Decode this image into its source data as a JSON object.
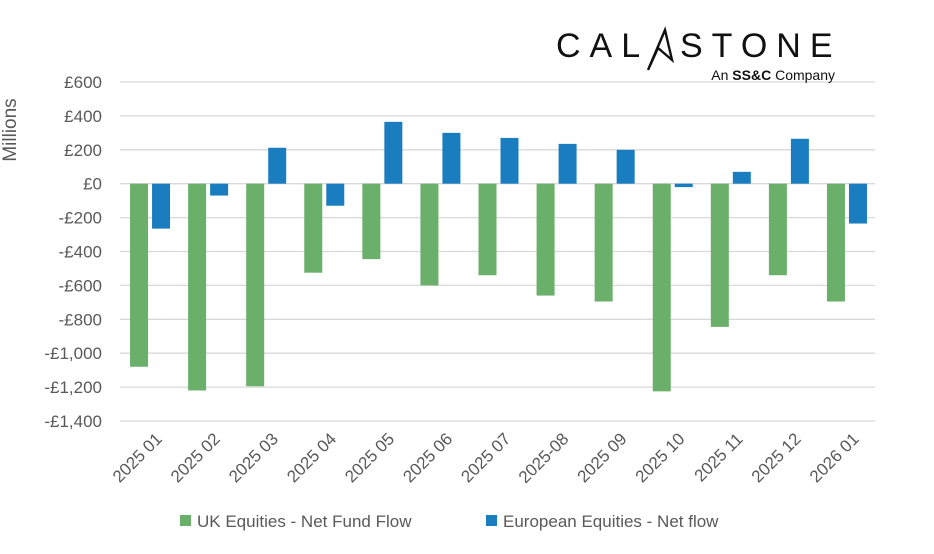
{
  "logo": {
    "name": "CALASTONE",
    "tagline_prefix": "An",
    "tagline_brand": "SS&C",
    "tagline_suffix": "Company"
  },
  "chart_data": {
    "type": "bar",
    "title": "",
    "xlabel": "",
    "ylabel": "Millions",
    "ylim": [
      -1400,
      600
    ],
    "yticks": [
      600,
      400,
      200,
      0,
      -200,
      -400,
      -600,
      -800,
      -1000,
      -1200,
      -1400
    ],
    "ytick_labels": [
      "£600",
      "£400",
      "£200",
      "£0",
      "-£200",
      "-£400",
      "-£600",
      "-£800",
      "-£1,000",
      "-£1,200",
      "-£1,400"
    ],
    "grid": true,
    "legend_position": "bottom",
    "categories": [
      "2025 01",
      "2025 02",
      "2025 03",
      "2025 04",
      "2025 05",
      "2025 06",
      "2025 07",
      "2025-08",
      "2025 09",
      "2025 10",
      "2025 11",
      "2025 12",
      "2026 01"
    ],
    "series": [
      {
        "name": "UK Equities - Net Fund Flow",
        "color": "#6aaf6a",
        "values": [
          -1080,
          -1220,
          -1195,
          -525,
          -445,
          -600,
          -540,
          -660,
          -695,
          -1225,
          -845,
          -540,
          -695
        ]
      },
      {
        "name": "European Equities - Net flow",
        "color": "#1a7dbf",
        "values": [
          -265,
          -70,
          212,
          -130,
          365,
          300,
          270,
          235,
          200,
          -20,
          70,
          265,
          -235
        ]
      }
    ]
  }
}
